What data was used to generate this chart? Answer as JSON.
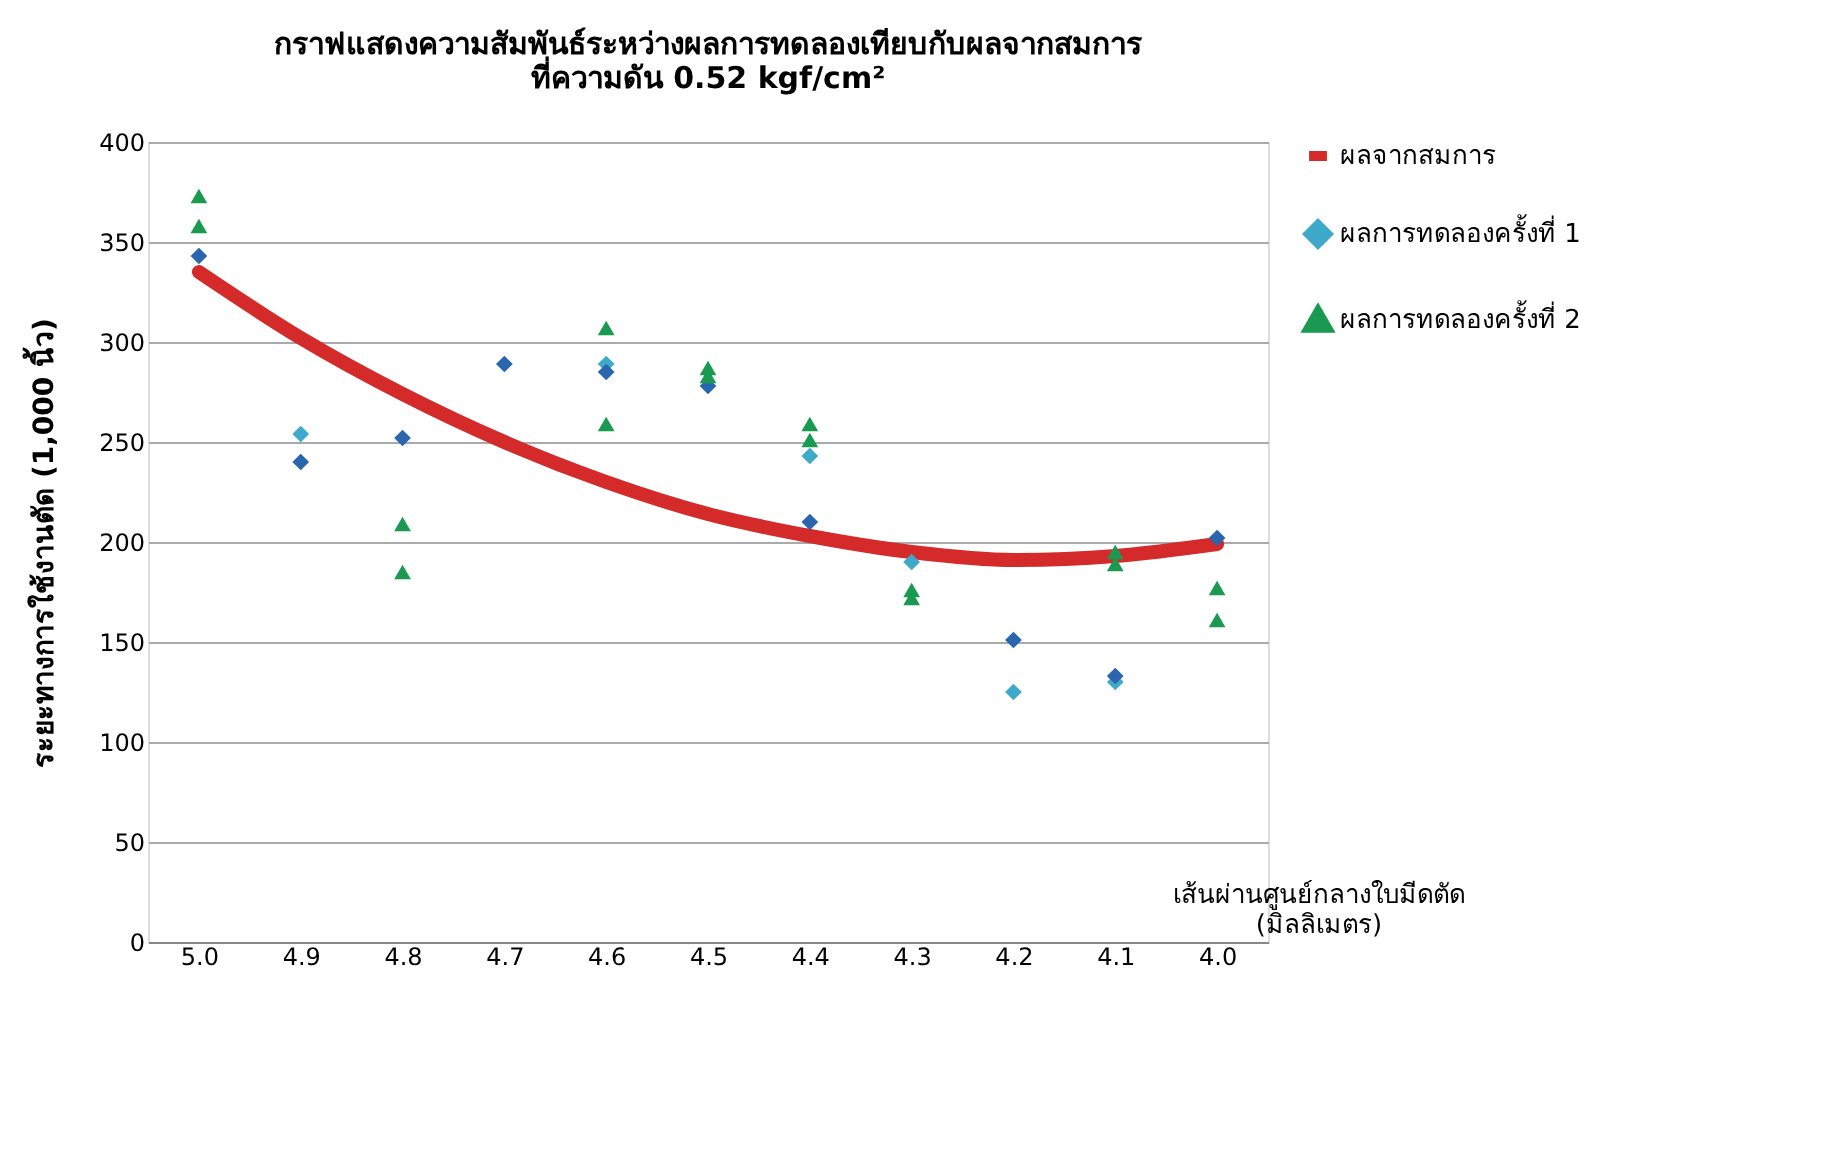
{
  "chart_data": {
    "type": "scatter",
    "title": [
      "กราฟแสดงความสัมพันธ์ระหว่างผลการทดลองเทียบกับผลจากสมการ",
      "ที่ความดัน 0.52 kgf/cm²"
    ],
    "xlabel": "เส้นผ่านศูนย์กลางใบมีดตัด (มิลลิเมตร)",
    "ylabel": "ระยะทางการใช้งานตัด (1,000 นิ้ว)",
    "categories": [
      "5.0",
      "4.9",
      "4.8",
      "4.7",
      "4.6",
      "4.5",
      "4.4",
      "4.3",
      "4.2",
      "4.1",
      "4.0"
    ],
    "ylim": [
      0,
      400
    ],
    "yticks": [
      0,
      50,
      100,
      150,
      200,
      250,
      300,
      350,
      400
    ],
    "grid": "y",
    "legend": "right",
    "series": [
      {
        "name": "ผลจากสมการ",
        "type": "line",
        "marker": "none",
        "color": "#d42a2a",
        "values": [
          335,
          302,
          274,
          250,
          230,
          214,
          203,
          195,
          191,
          193,
          199
        ]
      },
      {
        "name": "ผลการทดลองครั้งที่ 1",
        "marker": "diamond",
        "color": "#3fa9c9",
        "values": [
          null,
          254,
          null,
          null,
          289,
          null,
          243,
          190,
          125,
          130,
          null
        ]
      },
      {
        "marker": "diamond",
        "color": "#2a66b0",
        "values": [
          343,
          240,
          252,
          289,
          285,
          278,
          210,
          null,
          151,
          133,
          202
        ]
      },
      {
        "name": "ผลการทดลองครั้งที่ 2",
        "marker": "triangle",
        "color": "#1a9a50",
        "x": [
          "5.0",
          "5.0",
          "4.8",
          "4.8",
          "4.6",
          "4.6",
          "4.5",
          "4.5",
          "4.4",
          "4.4",
          "4.3",
          "4.3",
          "4.1",
          "4.1",
          "4.0",
          "4.0"
        ],
        "values": [
          373,
          358,
          209,
          185,
          307,
          259,
          287,
          283,
          259,
          251,
          176,
          172,
          195,
          189,
          177,
          161
        ]
      }
    ]
  }
}
